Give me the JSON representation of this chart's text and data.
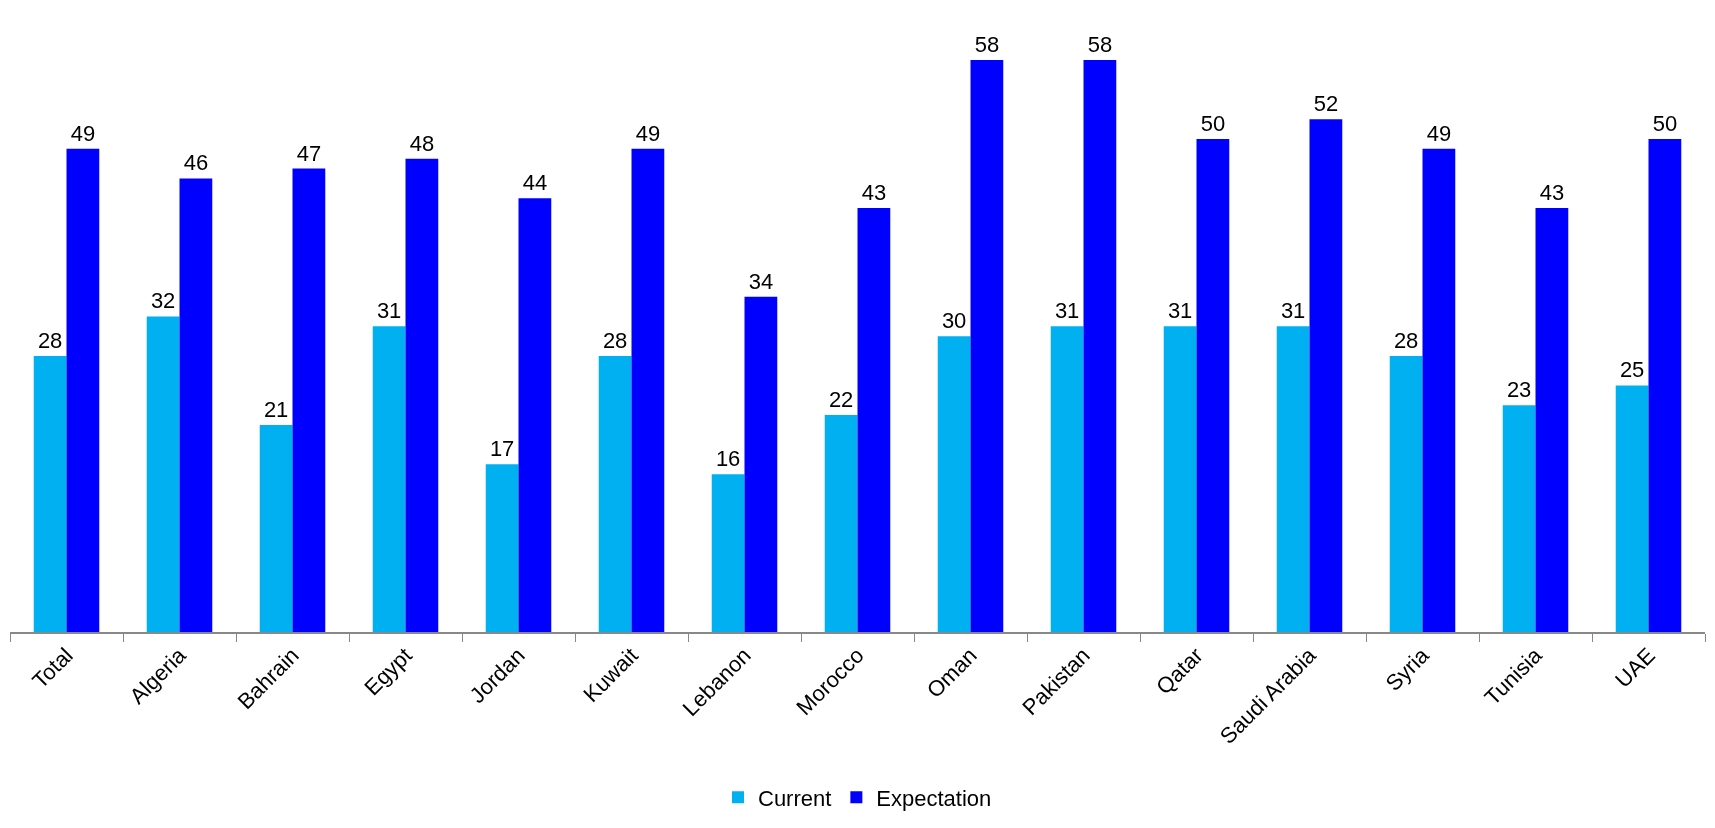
{
  "chart_data": {
    "type": "bar",
    "categories": [
      "Total",
      "Algeria",
      "Bahrain",
      "Egypt",
      "Jordan",
      "Kuwait",
      "Lebanon",
      "Morocco",
      "Oman",
      "Pakistan",
      "Qatar",
      "Saudi Arabia",
      "Syria",
      "Tunisia",
      "UAE"
    ],
    "series": [
      {
        "name": "Current",
        "color": "#00b0f0",
        "values": [
          28,
          32,
          21,
          31,
          17,
          28,
          16,
          22,
          30,
          31,
          31,
          31,
          28,
          23,
          25
        ]
      },
      {
        "name": "Expectation",
        "color": "#0000ff",
        "values": [
          49,
          46,
          47,
          48,
          44,
          49,
          34,
          43,
          58,
          58,
          50,
          52,
          49,
          43,
          50
        ]
      }
    ],
    "data_labels": true,
    "legend": "bottom"
  }
}
